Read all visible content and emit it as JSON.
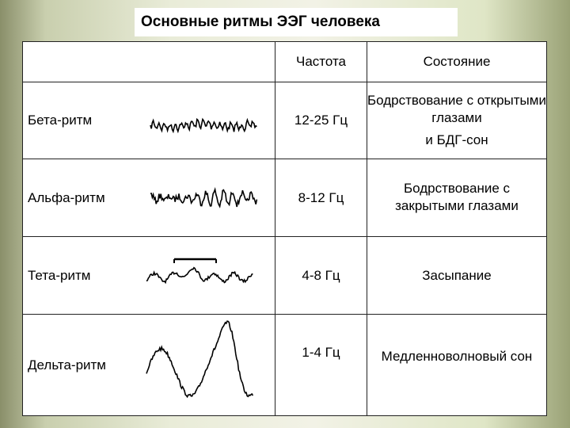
{
  "title": "Основные ритмы ЭЭГ человека",
  "table": {
    "header": [
      "Частота",
      "Состояние"
    ],
    "rows": [
      {
        "name": "Бета-ритм",
        "freq": "12-25 Гц",
        "state": [
          "Бодрствование с открытыми глазами",
          "и БДГ-сон"
        ]
      },
      {
        "name": "Альфа-ритм",
        "freq": "8-12 Гц",
        "state": [
          "Бодрствование с закрытыми глазами"
        ]
      },
      {
        "name": "Тета-ритм",
        "freq": "4-8 Гц",
        "state": [
          "Засыпание"
        ]
      },
      {
        "name": "Дельта-ритм",
        "freq": "1-4 Гц",
        "state": [
          "Медленноволновый сон"
        ]
      }
    ]
  }
}
